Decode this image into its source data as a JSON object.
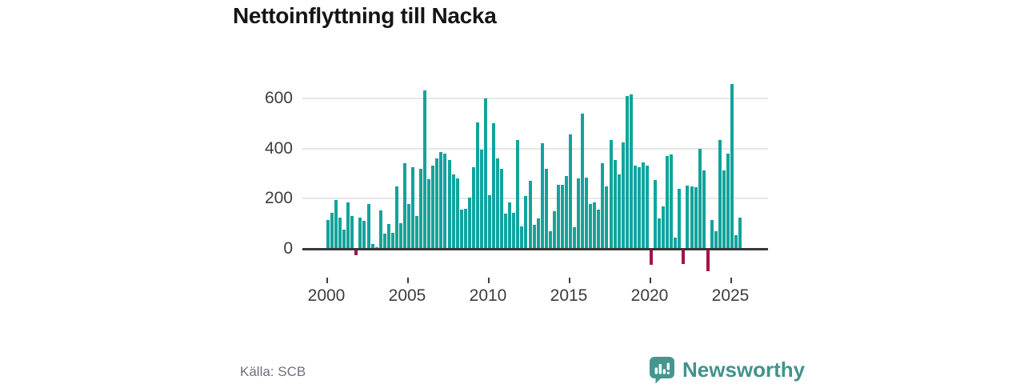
{
  "title": "Nettoinflyttning till Nacka",
  "source": "Källa: SCB",
  "brand": {
    "name": "Newsworthy",
    "icon": "speech-bubble-bar-chart",
    "color": "#3f948c",
    "icon_color": "#45968f"
  },
  "chart_data": {
    "type": "bar",
    "title": "Nettoinflyttning till Nacka",
    "xlabel": "",
    "ylabel": "",
    "frequency": "quarterly",
    "x_start": "2000Q1",
    "x_end": "2025Q3",
    "values": [
      115,
      145,
      195,
      125,
      75,
      185,
      130,
      -20,
      125,
      113,
      177,
      20,
      5,
      153,
      61,
      98,
      64,
      250,
      103,
      340,
      180,
      324,
      132,
      319,
      630,
      276,
      330,
      360,
      385,
      380,
      355,
      295,
      280,
      155,
      158,
      205,
      325,
      505,
      395,
      600,
      215,
      500,
      360,
      318,
      140,
      185,
      145,
      435,
      90,
      210,
      270,
      95,
      120,
      420,
      320,
      70,
      150,
      255,
      255,
      290,
      455,
      85,
      280,
      540,
      285,
      180,
      185,
      155,
      340,
      250,
      433,
      355,
      295,
      425,
      610,
      615,
      330,
      325,
      345,
      330,
      -60,
      275,
      120,
      170,
      370,
      375,
      45,
      238,
      -55,
      253,
      250,
      245,
      400,
      313,
      -85,
      115,
      70,
      433,
      313,
      380,
      655,
      55,
      123
    ],
    "x_tick_labels": [
      "2000",
      "2005",
      "2010",
      "2015",
      "2020",
      "2025"
    ],
    "y_ticks": [
      0,
      200,
      400,
      600
    ],
    "ylim": [
      -100,
      688
    ],
    "grid": "horizontal",
    "legend": "none",
    "colors": {
      "positive": "#13a39c",
      "negative": "#a31349"
    }
  }
}
